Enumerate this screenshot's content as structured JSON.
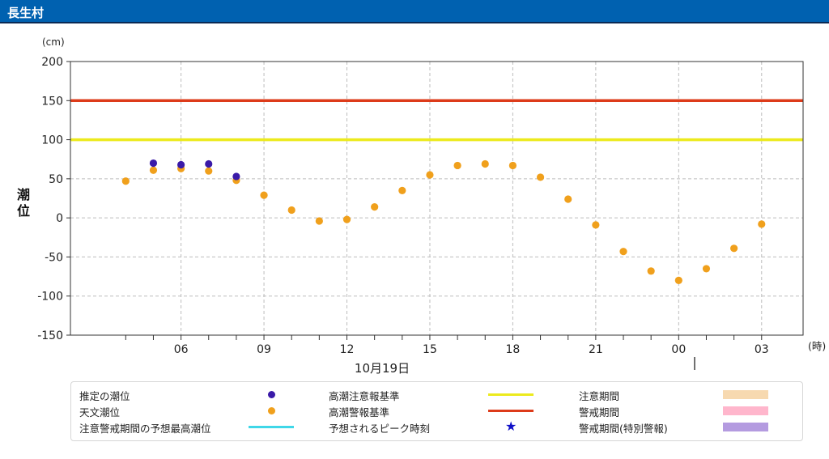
{
  "header": {
    "title": "長生村"
  },
  "chart_data": {
    "type": "scatter",
    "y_unit": "(cm)",
    "ylabel": "潮位",
    "x_unit": "(時)",
    "date_label": "10月19日",
    "ylim": [
      -150,
      200
    ],
    "y_ticks": [
      200,
      150,
      100,
      50,
      0,
      -50,
      -100,
      -150
    ],
    "x_tick_labels": [
      {
        "hour": 6,
        "label": "06"
      },
      {
        "hour": 9,
        "label": "09"
      },
      {
        "hour": 12,
        "label": "12"
      },
      {
        "hour": 15,
        "label": "15"
      },
      {
        "hour": 18,
        "label": "18"
      },
      {
        "hour": 21,
        "label": "21"
      },
      {
        "hour": 24,
        "label": "00"
      },
      {
        "hour": 27,
        "label": "03"
      }
    ],
    "xlim": [
      2,
      28.5
    ],
    "thresholds": [
      {
        "name": "高潮警報基準",
        "value": 150,
        "color": "#dd3b1a"
      },
      {
        "name": "高潮注意報基準",
        "value": 100,
        "color": "#ecea1d"
      }
    ],
    "series": [
      {
        "name": "天文潮位",
        "color": "#f0a01c",
        "x": [
          4,
          5,
          6,
          7,
          8,
          9,
          10,
          11,
          12,
          13,
          14,
          15,
          16,
          17,
          18,
          19,
          20,
          21,
          22,
          23,
          24,
          25,
          26,
          27
        ],
        "values": [
          47,
          61,
          63,
          60,
          48,
          29,
          10,
          -4,
          -2,
          14,
          35,
          55,
          67,
          69,
          67,
          52,
          24,
          -9,
          -43,
          -68,
          -80,
          -65,
          -39,
          -8
        ]
      },
      {
        "name": "推定の潮位",
        "color": "#3a1aa8",
        "x": [
          5,
          6,
          7,
          8
        ],
        "values": [
          70,
          68,
          69,
          53
        ]
      }
    ]
  },
  "legend": {
    "items": [
      {
        "label": "推定の潮位",
        "mark": "dot",
        "color": "#3a1aa8"
      },
      {
        "label": "高潮注意報基準",
        "mark": "line",
        "color": "#ecea1d"
      },
      {
        "label": "注意期間",
        "mark": "swatch",
        "color": "#f7d9b0"
      },
      {
        "label": "天文潮位",
        "mark": "dot",
        "color": "#f0a01c"
      },
      {
        "label": "高潮警報基準",
        "mark": "line",
        "color": "#dd3b1a"
      },
      {
        "label": "警戒期間",
        "mark": "swatch",
        "color": "#ffb6cc"
      },
      {
        "label": "注意警戒期間の予想最高潮位",
        "mark": "line",
        "color": "#3fd7e8"
      },
      {
        "label": "予想されるピーク時刻",
        "mark": "star",
        "color": "#1010c8",
        "glyph": "★"
      },
      {
        "label": "警戒期間(特別警報)",
        "mark": "swatch",
        "color": "#b49be0"
      }
    ]
  }
}
